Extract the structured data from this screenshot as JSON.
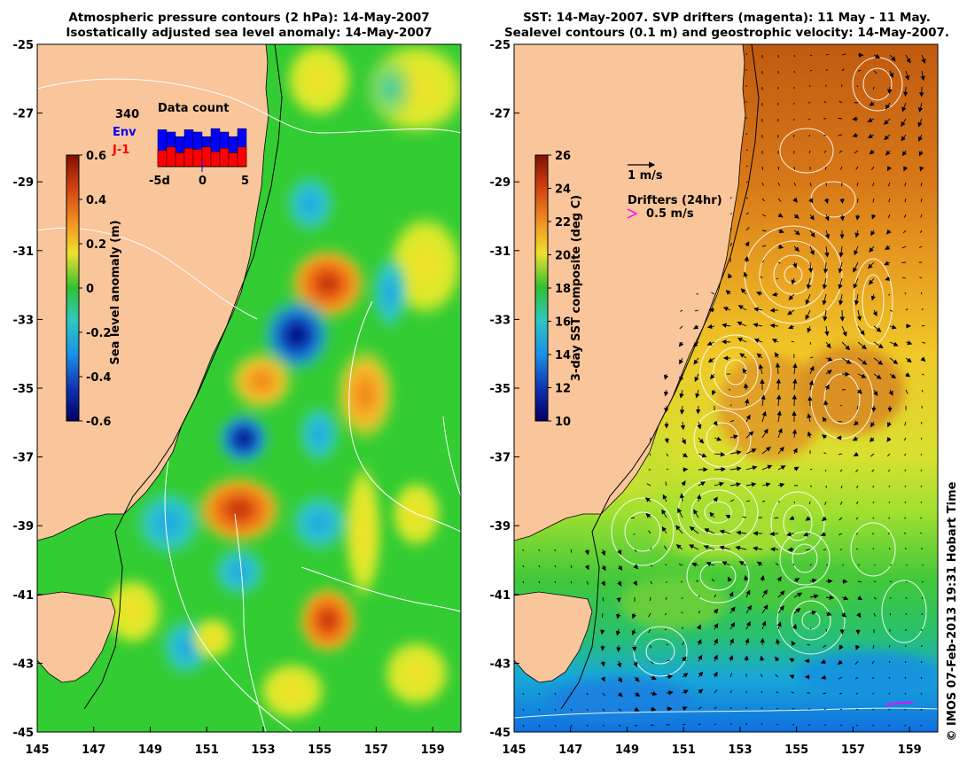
{
  "left_panel": {
    "title_line1": "Atmospheric pressure contours (2 hPa): 14-May-2007",
    "title_line2": "Isostatically adjusted sea level anomaly: 14-May-2007",
    "colorbar_label": "Sea level anomaly (m)",
    "colorbar_ticks": [
      "0.6",
      "0.4",
      "0.2",
      "0",
      "-0.2",
      "-0.4",
      "-0.6"
    ],
    "inset": {
      "title": "Data count",
      "count_label": "340",
      "env_label": "Env",
      "j1_label": "J-1",
      "xticks": [
        "-5d",
        "0",
        "5"
      ],
      "env_color": "#0000ff",
      "j1_color": "#ff0000",
      "env_values": [
        320,
        300,
        260,
        320,
        300,
        260,
        330,
        300,
        260,
        330
      ],
      "j1_values": [
        140,
        170,
        120,
        160,
        150,
        170,
        130,
        160,
        120,
        170
      ]
    }
  },
  "right_panel": {
    "title_line1": "SST: 14-May-2007. SVP drifters (magenta): 11 May - 11 May.",
    "title_line2": "Sealevel contours (0.1 m) and geostrophic velocity: 14-May-2007.",
    "colorbar_label": "3-day SST composite (deg C)",
    "colorbar_ticks": [
      "26",
      "24",
      "22",
      "20",
      "18",
      "16",
      "14",
      "12",
      "10"
    ],
    "velocity_legend": "1 m/s",
    "drifters_legend": "Drifters (24hr)",
    "drifters_speed": "0.5 m/s",
    "drifter_color": "#ff00ff"
  },
  "axes": {
    "y_ticks": [
      "-25",
      "-27",
      "-29",
      "-31",
      "-33",
      "-35",
      "-37",
      "-39",
      "-41",
      "-43",
      "-45"
    ],
    "x_ticks": [
      "145",
      "147",
      "149",
      "151",
      "153",
      "155",
      "157",
      "159"
    ]
  },
  "colors": {
    "land": "#f9c59a",
    "ocean_base": "#33cc33",
    "coast": "#000000"
  },
  "credit": "© IMOS 07-Feb-2013 19:31 Hobart Time"
}
